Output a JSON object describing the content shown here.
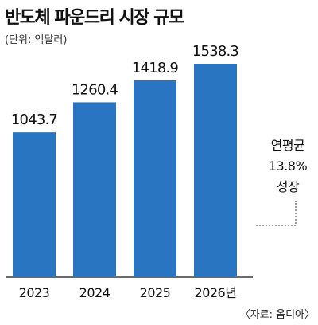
{
  "header": {
    "title": "반도체 파운드리 시장 규모",
    "unit": "(단위: 억달러)"
  },
  "annotation": {
    "line1": "연평균",
    "line2": "13.8%",
    "line3": "성장"
  },
  "source": "〈자료: 옴디아〉",
  "colors": {
    "bar": "#2a75c2",
    "baseline": "#111111",
    "dotted": "#555555"
  },
  "chart_data": {
    "type": "bar",
    "title": "반도체 파운드리 시장 규모",
    "xlabel": "",
    "ylabel": "",
    "categories": [
      "2023",
      "2024",
      "2025",
      "2026년"
    ],
    "values": [
      1043.7,
      1260.4,
      1418.9,
      1538.3
    ],
    "value_labels": [
      "1043.7",
      "1260.4",
      "1418.9",
      "1538.3"
    ],
    "grid": false,
    "legend": "none"
  }
}
